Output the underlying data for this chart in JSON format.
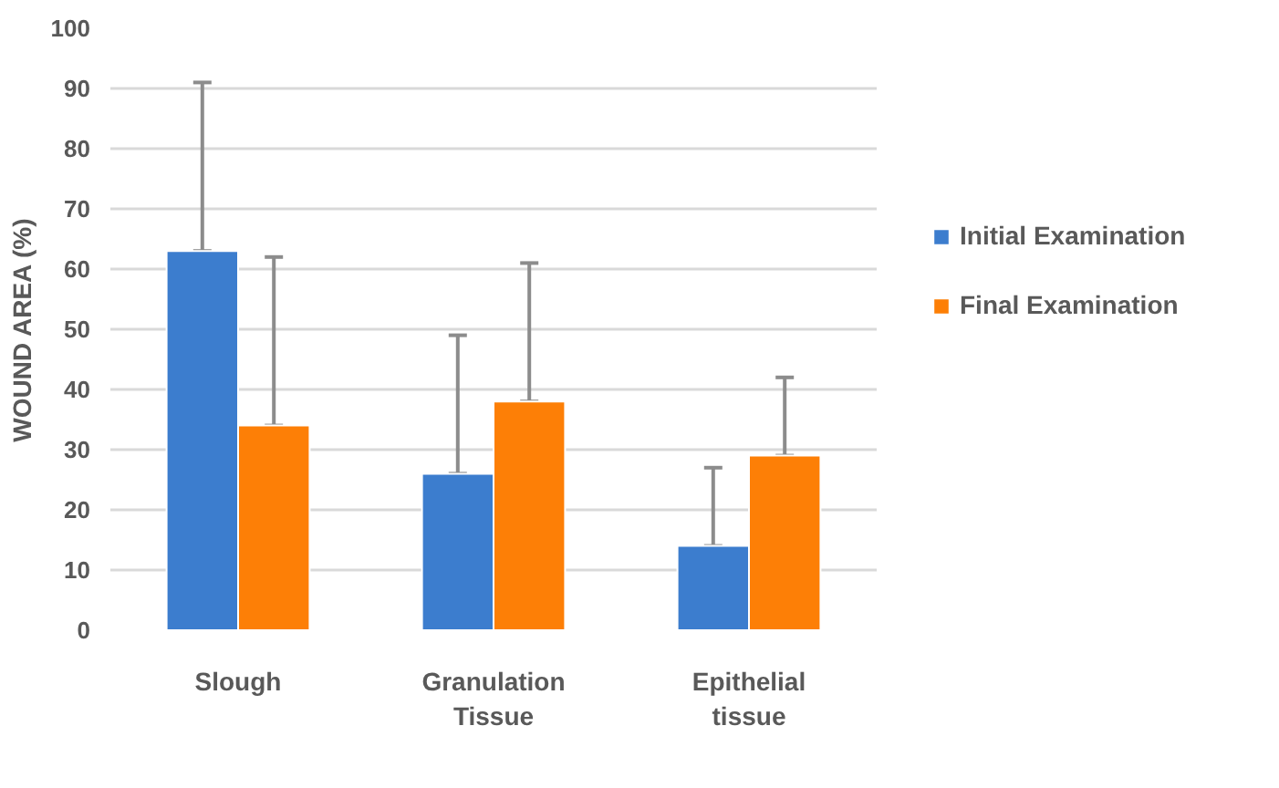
{
  "chart_data": {
    "type": "bar",
    "ylabel": "WOUND AREA (%)",
    "categories": [
      "Slough",
      "Granulation Tissue",
      "Epithelial tissue"
    ],
    "series": [
      {
        "name": "Initial Examination",
        "color": "#3c7dce",
        "values": [
          63,
          26,
          14
        ],
        "errors": [
          [
            63,
            91
          ],
          [
            26,
            49
          ],
          [
            14,
            27
          ]
        ]
      },
      {
        "name": "Final Examination",
        "color": "#fd7f06",
        "values": [
          34,
          38,
          29
        ],
        "errors": [
          [
            34,
            62
          ],
          [
            38,
            61
          ],
          [
            29,
            42
          ]
        ]
      }
    ],
    "ylim": [
      0,
      100
    ],
    "yticks": [
      0,
      10,
      20,
      30,
      40,
      50,
      60,
      70,
      80,
      90,
      100
    ],
    "grid": "y",
    "legend": "right"
  }
}
